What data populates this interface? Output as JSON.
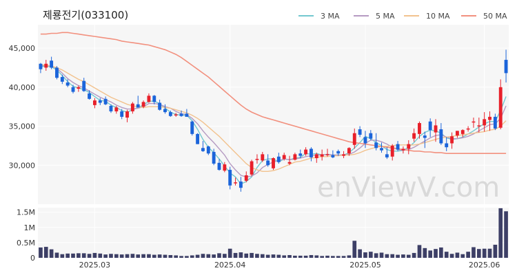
{
  "title": "제룡전기(033100)",
  "watermark": "enViewV.com",
  "legend": [
    {
      "label": "3 MA",
      "color": "#72c8cf"
    },
    {
      "label": "5 MA",
      "color": "#b59ac2"
    },
    {
      "label": "10 MA",
      "color": "#f2c28e"
    },
    {
      "label": "50 MA",
      "color": "#f2907e"
    }
  ],
  "colors": {
    "up": "#e8202a",
    "down": "#1b64da",
    "volume": "#3d3f66",
    "plot_bg": "#f6f6f6",
    "grid": "#ffffff"
  },
  "chart_data": [
    {
      "type": "candlestick",
      "title": "제룡전기(033100)",
      "y_ticks": [
        "45,000",
        "40,000",
        "35,000",
        "30,000"
      ],
      "y_tick_values": [
        45000,
        40000,
        35000,
        30000
      ],
      "ylim": [
        25000,
        48000
      ],
      "x_ticks": [
        "2025.03",
        "2025.04",
        "2025.05",
        "2025.06"
      ],
      "x_tick_index": [
        10,
        35,
        60,
        82
      ],
      "ohlc": [
        [
          43000,
          43100,
          41800,
          42300
        ],
        [
          42500,
          43500,
          42100,
          43000
        ],
        [
          43400,
          43900,
          42300,
          42500
        ],
        [
          42500,
          42700,
          41000,
          41200
        ],
        [
          41300,
          41600,
          40400,
          40700
        ],
        [
          40600,
          41000,
          40000,
          40200
        ],
        [
          40000,
          40300,
          39200,
          39400
        ],
        [
          39800,
          40200,
          39400,
          40000
        ],
        [
          40800,
          41200,
          39400,
          39500
        ],
        [
          39200,
          39600,
          38400,
          38500
        ],
        [
          37700,
          38600,
          37300,
          38300
        ],
        [
          38300,
          38600,
          37700,
          38000
        ],
        [
          38500,
          38800,
          37700,
          37800
        ],
        [
          37600,
          37800,
          36700,
          36900
        ],
        [
          36900,
          37600,
          36600,
          37400
        ],
        [
          36900,
          37200,
          35900,
          36200
        ],
        [
          36100,
          37100,
          35500,
          36900
        ],
        [
          36900,
          38100,
          36600,
          37900
        ],
        [
          37800,
          38900,
          37600,
          37400
        ],
        [
          37500,
          38300,
          37300,
          38100
        ],
        [
          38100,
          39200,
          38000,
          38900
        ],
        [
          38900,
          39000,
          37800,
          38100
        ],
        [
          38000,
          38400,
          37000,
          37100
        ],
        [
          37200,
          37800,
          36600,
          36800
        ],
        [
          36800,
          37000,
          36200,
          36300
        ],
        [
          36400,
          36700,
          36200,
          36500
        ],
        [
          36600,
          37000,
          36200,
          36300
        ],
        [
          36600,
          37200,
          36300,
          36200
        ],
        [
          35600,
          35700,
          33800,
          34000
        ],
        [
          34000,
          34100,
          32700,
          32700
        ],
        [
          32200,
          33100,
          31700,
          31800
        ],
        [
          32400,
          32500,
          31300,
          31500
        ],
        [
          31700,
          32100,
          30000,
          30200
        ],
        [
          30300,
          30800,
          29300,
          29400
        ],
        [
          29300,
          30400,
          29100,
          30100
        ],
        [
          29400,
          29800,
          26900,
          27400
        ],
        [
          27700,
          28400,
          27400,
          27800
        ],
        [
          27900,
          28500,
          26600,
          27100
        ],
        [
          28000,
          29200,
          27800,
          28700
        ],
        [
          28800,
          30700,
          28600,
          30500
        ],
        [
          30700,
          31400,
          30200,
          30800
        ],
        [
          30600,
          31700,
          30400,
          31400
        ],
        [
          30600,
          31400,
          29800,
          30000
        ],
        [
          29600,
          31000,
          29400,
          30900
        ],
        [
          31100,
          31600,
          30200,
          30400
        ],
        [
          30800,
          31600,
          30600,
          31300
        ],
        [
          30200,
          31200,
          30000,
          30400
        ],
        [
          30700,
          31600,
          30600,
          31400
        ],
        [
          31500,
          32000,
          30900,
          31200
        ],
        [
          31400,
          32300,
          31200,
          32000
        ],
        [
          32100,
          32300,
          30500,
          31000
        ],
        [
          30900,
          31600,
          30300,
          31400
        ],
        [
          31100,
          32000,
          30600,
          31400
        ],
        [
          31400,
          32100,
          31100,
          31400
        ],
        [
          31300,
          31900,
          30900,
          31000
        ],
        [
          31800,
          32000,
          31200,
          31500
        ],
        [
          31200,
          31800,
          30900,
          31400
        ],
        [
          31500,
          32300,
          31200,
          32200
        ],
        [
          32600,
          34700,
          32100,
          34100
        ],
        [
          34600,
          35000,
          33600,
          33900
        ],
        [
          33600,
          34400,
          32200,
          32800
        ],
        [
          34100,
          34500,
          33200,
          33400
        ],
        [
          32900,
          34100,
          31900,
          32200
        ],
        [
          32200,
          32900,
          31600,
          31900
        ],
        [
          31400,
          32300,
          30800,
          31000
        ],
        [
          31100,
          32700,
          30600,
          32500
        ],
        [
          32700,
          33100,
          31800,
          32000
        ],
        [
          31900,
          32400,
          31500,
          32100
        ],
        [
          32100,
          33200,
          31400,
          32700
        ],
        [
          33400,
          34700,
          33000,
          34100
        ],
        [
          34000,
          35600,
          33400,
          35400
        ],
        [
          33800,
          34300,
          32200,
          33500
        ],
        [
          35600,
          36000,
          33600,
          34500
        ],
        [
          34200,
          35900,
          33000,
          35100
        ],
        [
          34600,
          35400,
          32600,
          32800
        ],
        [
          32800,
          33600,
          31800,
          32300
        ],
        [
          32800,
          34200,
          32100,
          33700
        ],
        [
          33800,
          34400,
          33500,
          34400
        ],
        [
          34000,
          34600,
          33600,
          34500
        ],
        [
          34600,
          35000,
          34300,
          34700
        ],
        [
          35600,
          36100,
          34800,
          35600
        ],
        [
          35000,
          36100,
          34200,
          35100
        ],
        [
          35100,
          36800,
          34300,
          35900
        ],
        [
          35800,
          36900,
          34400,
          36200
        ],
        [
          36200,
          36600,
          34500,
          34700
        ],
        [
          34800,
          41000,
          34600,
          40000
        ],
        [
          43500,
          44800,
          40600,
          41800
        ]
      ],
      "ma3": [
        42600,
        42700,
        42600,
        42200,
        41500,
        40700,
        40100,
        39900,
        39700,
        39300,
        38800,
        38300,
        38200,
        37700,
        37400,
        37000,
        36800,
        37100,
        37400,
        37700,
        38200,
        38200,
        37900,
        37300,
        36800,
        36500,
        36400,
        36400,
        35700,
        34600,
        33300,
        32300,
        31600,
        30800,
        29900,
        29000,
        28500,
        27600,
        27900,
        28500,
        29700,
        30600,
        30800,
        30800,
        30400,
        30800,
        30700,
        30900,
        31000,
        31500,
        31400,
        31500,
        31300,
        31400,
        31300,
        31300,
        31300,
        31600,
        32200,
        32900,
        33700,
        33400,
        32900,
        32500,
        32000,
        31800,
        31800,
        31900,
        32300,
        32900,
        33700,
        34200,
        34500,
        34400,
        34100,
        33500,
        33300,
        33400,
        33600,
        34000,
        34400,
        34900,
        35300,
        35600,
        35600,
        37000,
        38800
      ],
      "ma5": [
        42700,
        42800,
        42700,
        42400,
        41800,
        41100,
        40600,
        40200,
        39900,
        39500,
        39100,
        38700,
        38400,
        38100,
        37700,
        37400,
        37200,
        37200,
        37300,
        37500,
        37900,
        37900,
        37800,
        37500,
        37300,
        36900,
        36600,
        36500,
        36000,
        35300,
        34400,
        33600,
        32900,
        32100,
        31300,
        30200,
        29400,
        28700,
        28500,
        28600,
        29000,
        29700,
        30100,
        30400,
        30600,
        30800,
        30700,
        30800,
        30900,
        31100,
        31200,
        31300,
        31300,
        31400,
        31300,
        31300,
        31300,
        31400,
        31700,
        32200,
        32800,
        33200,
        33200,
        33000,
        32700,
        32300,
        32000,
        31900,
        32000,
        32300,
        32700,
        33100,
        33500,
        33800,
        33900,
        33600,
        33400,
        33400,
        33500,
        33700,
        34000,
        34400,
        34800,
        35200,
        35300,
        36000,
        37600
      ],
      "ma10": [
        42900,
        42800,
        42700,
        42500,
        42200,
        41800,
        41400,
        41000,
        40700,
        40300,
        39900,
        39500,
        39100,
        38700,
        38400,
        38100,
        37800,
        37600,
        37500,
        37400,
        37500,
        37500,
        37500,
        37400,
        37300,
        37100,
        36900,
        36700,
        36400,
        36000,
        35500,
        34900,
        34300,
        33700,
        33000,
        32300,
        31600,
        30900,
        30200,
        29700,
        29400,
        29200,
        29200,
        29300,
        29500,
        29800,
        30100,
        30400,
        30500,
        30700,
        30900,
        31000,
        31100,
        31100,
        31200,
        31200,
        31300,
        31300,
        31400,
        31600,
        31900,
        32100,
        32300,
        32400,
        32400,
        32500,
        32600,
        32600,
        32600,
        32600,
        32700,
        32900,
        33100,
        33300,
        33500,
        33600,
        33700,
        33800,
        33900,
        34000,
        34100,
        34200,
        34300,
        34500,
        34600,
        35000,
        35700
      ],
      "ma50": [
        46800,
        46800,
        46900,
        46900,
        47000,
        47000,
        46900,
        46800,
        46700,
        46600,
        46500,
        46400,
        46300,
        46200,
        46100,
        45900,
        45800,
        45700,
        45600,
        45500,
        45400,
        45200,
        45000,
        44800,
        44500,
        44200,
        43800,
        43300,
        42800,
        42300,
        41800,
        41300,
        40700,
        40100,
        39500,
        38900,
        38300,
        37700,
        37200,
        36800,
        36500,
        36200,
        36000,
        35800,
        35600,
        35400,
        35200,
        35000,
        34800,
        34600,
        34400,
        34200,
        34000,
        33800,
        33600,
        33400,
        33200,
        33000,
        32900,
        32800,
        32700,
        32600,
        32500,
        32400,
        32300,
        32200,
        32100,
        32000,
        31900,
        31800,
        31800,
        31700,
        31700,
        31600,
        31600,
        31500,
        31500,
        31500,
        31500,
        31500,
        31500,
        31500,
        31500,
        31500,
        31500,
        31500,
        31500
      ]
    },
    {
      "type": "bar",
      "title": "",
      "y_ticks": [
        "1.5M",
        "1M",
        "0.5M",
        "0"
      ],
      "y_tick_values": [
        1500000,
        1000000,
        500000,
        0
      ],
      "ylim": [
        0,
        1650000
      ],
      "volumes": [
        340000,
        360000,
        280000,
        170000,
        120000,
        140000,
        140000,
        150000,
        150000,
        130000,
        160000,
        140000,
        110000,
        130000,
        120000,
        110000,
        120000,
        130000,
        110000,
        120000,
        120000,
        100000,
        110000,
        100000,
        90000,
        80000,
        60000,
        60000,
        80000,
        100000,
        130000,
        120000,
        110000,
        150000,
        130000,
        300000,
        160000,
        180000,
        140000,
        160000,
        130000,
        120000,
        100000,
        110000,
        100000,
        80000,
        90000,
        70000,
        70000,
        70000,
        90000,
        80000,
        60000,
        70000,
        60000,
        60000,
        60000,
        80000,
        560000,
        280000,
        180000,
        200000,
        150000,
        170000,
        120000,
        120000,
        100000,
        110000,
        100000,
        160000,
        420000,
        320000,
        240000,
        290000,
        340000,
        200000,
        130000,
        170000,
        120000,
        200000,
        350000,
        290000,
        300000,
        300000,
        430000,
        1630000,
        1530000
      ]
    }
  ]
}
